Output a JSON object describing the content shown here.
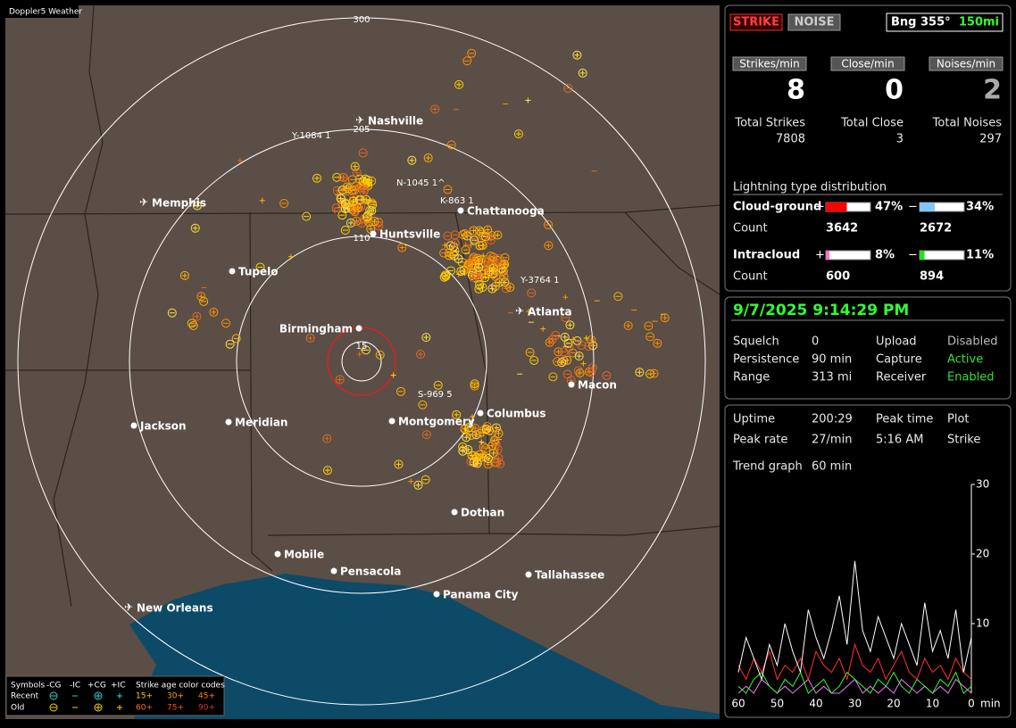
{
  "window_title": "Doppler5 Weather",
  "map": {
    "ring_labels": [
      300,
      205,
      110,
      15
    ],
    "cities": [
      {
        "label": "Nashville"
      },
      {
        "label": "Memphis"
      },
      {
        "label": "Chattanooga"
      },
      {
        "label": "Huntsville"
      },
      {
        "label": "Tupelo"
      },
      {
        "label": "Atlanta"
      },
      {
        "label": "Birmingham"
      },
      {
        "label": "Macon"
      },
      {
        "label": "Columbus"
      },
      {
        "label": "Jackson"
      },
      {
        "label": "Meridian"
      },
      {
        "label": "Montgomery"
      },
      {
        "label": "Dothan"
      },
      {
        "label": "Mobile"
      },
      {
        "label": "Pensacola"
      },
      {
        "label": "Tallahassee"
      },
      {
        "label": "Panama City"
      },
      {
        "label": "New Orleans"
      }
    ],
    "strike_labels": [
      "Y-1084 1",
      "N-1045 1^",
      "K-863 1",
      "Y-3764 1",
      "S-969 5"
    ],
    "legend": {
      "symbols": "Symbols",
      "types": [
        "-CG",
        "-IC",
        "+CG",
        "+IC"
      ],
      "age_title": "Strike age color codes",
      "rows": [
        "Recent",
        "Old"
      ],
      "ages": [
        "15+",
        "30+",
        "45+",
        "60+",
        "75+",
        "90+"
      ]
    }
  },
  "panel": {
    "strike": "STRIKE",
    "noise": "NOISE",
    "bearing": "Bng 355°",
    "distance": "150mi",
    "rates": [
      {
        "label": "Strikes/min",
        "value": 8
      },
      {
        "label": "Close/min",
        "value": 0
      },
      {
        "label": "Noises/min",
        "value": 2
      }
    ],
    "totals": [
      {
        "label": "Total Strikes",
        "value": 7808
      },
      {
        "label": "Total Close",
        "value": 3
      },
      {
        "label": "Total Noises",
        "value": 297
      }
    ],
    "distribution": {
      "title": "Lightning type distribution",
      "plus": "+",
      "minus": "−",
      "count": "Count",
      "rows": [
        {
          "label": "Cloud-ground",
          "pos": {
            "value": 47,
            "label": "47%"
          },
          "neg": {
            "value": 34,
            "label": "34%"
          },
          "pos_count": 3642,
          "neg_count": 2672
        },
        {
          "label": "Intracloud",
          "pos": {
            "value": 8,
            "label": "8%"
          },
          "neg": {
            "value": 11,
            "label": "11%"
          },
          "pos_count": 600,
          "neg_count": 894
        }
      ]
    },
    "datetime": "9/7/2025 9:14:29 PM",
    "status": [
      [
        "Squelch",
        0,
        "Upload",
        "Disabled"
      ],
      [
        "Persistence",
        "90 min",
        "Capture",
        "Active"
      ],
      [
        "Range",
        "313 mi",
        "Receiver",
        "Enabled"
      ]
    ],
    "stats": [
      [
        "Uptime",
        "200:29",
        "Peak time",
        "Plot"
      ],
      [
        "Peak rate",
        "27/min",
        "5:16 AM",
        "Strike"
      ]
    ],
    "trend": [
      "Trend graph",
      "60 min"
    ]
  },
  "chart_data": {
    "type": "line",
    "x_label": "min",
    "x": [
      60,
      58,
      56,
      54,
      52,
      50,
      48,
      46,
      44,
      42,
      40,
      38,
      36,
      34,
      32,
      30,
      28,
      26,
      24,
      22,
      20,
      18,
      16,
      14,
      12,
      10,
      8,
      6,
      4,
      2,
      0
    ],
    "series": [
      {
        "color": "#ffffff",
        "values": [
          3,
          8,
          5,
          2,
          7,
          4,
          10,
          6,
          3,
          12,
          8,
          5,
          9,
          14,
          7,
          19,
          9,
          6,
          11,
          8,
          5,
          10,
          7,
          4,
          13,
          6,
          9,
          5,
          12,
          3,
          8
        ]
      },
      {
        "color": "#ff3030",
        "values": [
          4,
          2,
          5,
          3,
          6,
          2,
          4,
          3,
          5,
          2,
          6,
          4,
          3,
          5,
          2,
          7,
          4,
          3,
          5,
          2,
          4,
          6,
          3,
          2,
          5,
          3,
          4,
          2,
          5,
          3,
          2
        ]
      },
      {
        "color": "#30ff30",
        "values": [
          1,
          0,
          2,
          3,
          1,
          0,
          2,
          1,
          3,
          0,
          1,
          2,
          0,
          1,
          3,
          2,
          1,
          0,
          2,
          1,
          3,
          1,
          0,
          2,
          1,
          0,
          2,
          1,
          3,
          0,
          1
        ]
      },
      {
        "color": "#ff70ff",
        "values": [
          0,
          1,
          0,
          2,
          1,
          0,
          1,
          0,
          1,
          2,
          0,
          1,
          0,
          0,
          1,
          2,
          0,
          1,
          0,
          1,
          0,
          2,
          1,
          0,
          1,
          0,
          1,
          0,
          2,
          1,
          0
        ]
      }
    ],
    "xlim": [
      60,
      0
    ],
    "xticks": [
      60,
      50,
      40,
      30,
      20,
      10,
      0
    ],
    "ylim": [
      0,
      30
    ],
    "yticks": [
      10,
      20,
      30
    ]
  }
}
